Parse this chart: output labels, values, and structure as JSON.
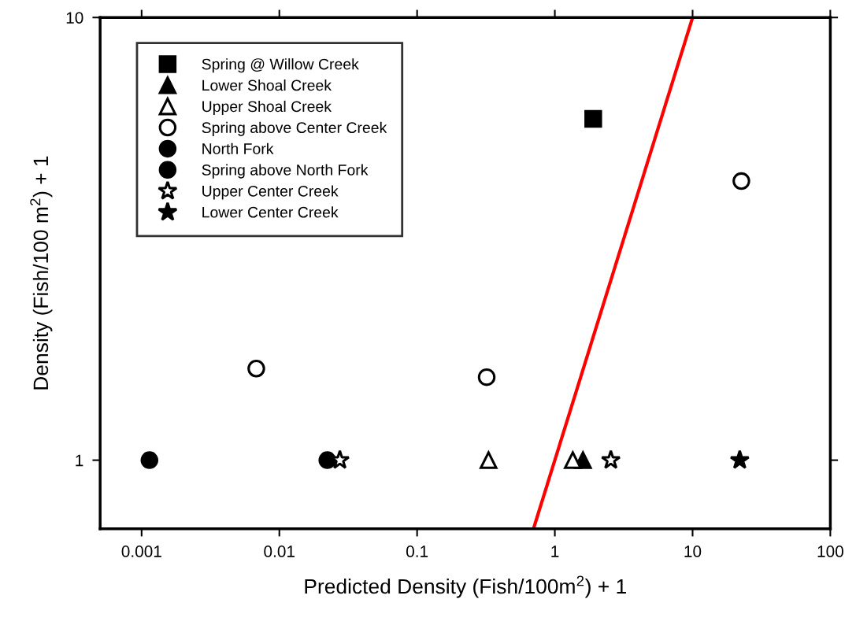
{
  "chart_data": {
    "type": "scatter",
    "xlabel": "Predicted Density (Fish/100m$^{2}$) + 1",
    "ylabel": "Density (Fish/100 m$^{2}$) + 1",
    "log": "xy",
    "xlim": [
      0.0005,
      100
    ],
    "ylim": [
      0.7,
      10
    ],
    "xticks": [
      0.001,
      0.01,
      0.1,
      1,
      10,
      100
    ],
    "yticks": [
      1,
      10
    ],
    "grid": false,
    "legend": "top left",
    "series": [
      {
        "name": "Spring @ Willow Creek",
        "color": "#000000",
        "marker": "square",
        "x": [
          1.9
        ],
        "values": [
          5.9
        ]
      },
      {
        "name": "Lower Shoal Creek",
        "color": "#000000",
        "marker": "triangle",
        "x": [
          1.6
        ],
        "values": [
          1
        ]
      },
      {
        "name": "Upper Shoal Creek",
        "color": "#ffffff",
        "marker": "triangle",
        "x": [
          0.33,
          1.35
        ],
        "values": [
          1,
          1
        ]
      },
      {
        "name": "Spring above Center Creek",
        "color": "#ffffff",
        "marker": "circle",
        "x": [
          0.0068,
          0.32,
          22.6
        ],
        "values": [
          1.61,
          1.54,
          4.27
        ]
      },
      {
        "name": "North Fork",
        "color": "#000000",
        "marker": "circle",
        "x": [
          0.0223
        ],
        "values": [
          1
        ]
      },
      {
        "name": "Spring above North Fork",
        "color": "#000000",
        "marker": "circle",
        "x": [
          0.00114
        ],
        "values": [
          1
        ]
      },
      {
        "name": "Upper Center Creek",
        "color": "#ffffff",
        "marker": "star",
        "x": [
          0.0275,
          2.55
        ],
        "values": [
          1,
          1
        ]
      },
      {
        "name": "Lower Center Creek",
        "color": "#000000",
        "marker": "star",
        "x": [
          22
        ],
        "values": [
          1
        ]
      },
      {
        "type": "line",
        "color": "#ff0000",
        "marker": "none",
        "line_style": "solid",
        "x": [
          0.7,
          10
        ],
        "values": [
          0.7,
          10
        ]
      }
    ]
  }
}
